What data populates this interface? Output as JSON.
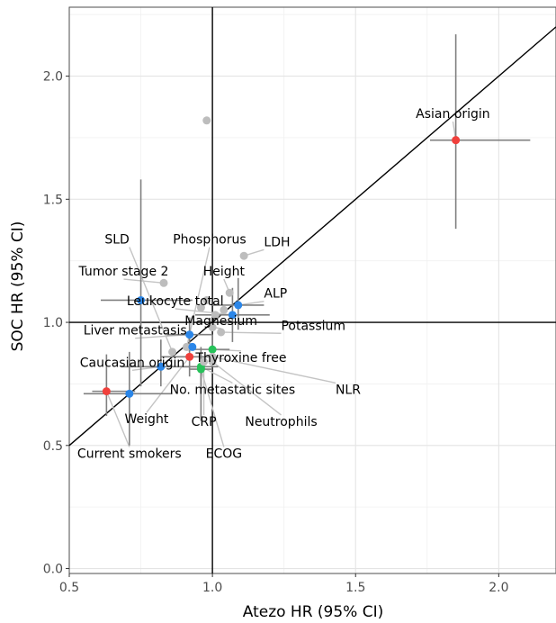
{
  "chart_data": {
    "type": "scatter",
    "title": "",
    "xlabel": "Atezo HR (95% CI)",
    "ylabel": "SOC HR (95% CI)",
    "xlim": [
      0.5,
      2.2
    ],
    "ylim": [
      -0.02,
      2.28
    ],
    "xticks": [
      0.5,
      1.0,
      1.5,
      2.0
    ],
    "yticks": [
      0.0,
      0.5,
      1.0,
      1.5,
      2.0
    ],
    "xtick_labels": [
      "0.5",
      "1.0",
      "1.5",
      "2.0"
    ],
    "ytick_labels": [
      "0.0",
      "0.5",
      "1.0",
      "1.5",
      "2.0"
    ],
    "grid": true,
    "reference_lines": {
      "x": 1.0,
      "y": 1.0,
      "identity": true
    },
    "colors": {
      "red": "#f0403c",
      "blue": "#2b86e8",
      "green": "#27c25a",
      "grey": "#bdbdbd",
      "errorbar": "#808080",
      "leader": "#c4c4c4"
    },
    "points": [
      {
        "label": "Asian origin",
        "x": 1.85,
        "y": 1.74,
        "xmin": 1.76,
        "xmax": 2.11,
        "ymin": 1.38,
        "ymax": 2.17,
        "color": "red",
        "lx": 1.84,
        "ly": 1.83,
        "anchor": "middle"
      },
      {
        "label": "SLD",
        "x": 0.86,
        "y": 0.88,
        "color": "grey",
        "lx": 0.71,
        "ly": 1.32,
        "anchor": "end"
      },
      {
        "label": "Phosphorus",
        "x": 0.91,
        "y": 0.9,
        "color": "grey",
        "lx": 0.99,
        "ly": 1.32,
        "anchor": "middle"
      },
      {
        "label": "LDH",
        "x": 1.11,
        "y": 1.27,
        "color": "grey",
        "lx": 1.18,
        "ly": 1.31,
        "anchor": "start"
      },
      {
        "label": "Tumor stage 2",
        "x": 0.83,
        "y": 1.16,
        "color": "grey",
        "lx": 0.69,
        "ly": 1.19,
        "anchor": "middle"
      },
      {
        "label": "Height",
        "x": 1.06,
        "y": 1.12,
        "color": "grey",
        "lx": 1.04,
        "ly": 1.19,
        "anchor": "middle"
      },
      {
        "label": "ALP",
        "x": 1.09,
        "y": 1.07,
        "xmin": 1.0,
        "xmax": 1.18,
        "ymin": 0.97,
        "ymax": 1.18,
        "color": "blue",
        "lx": 1.18,
        "ly": 1.1,
        "anchor": "start"
      },
      {
        "label": "Leukocyte total",
        "x": 1.07,
        "y": 1.03,
        "xmin": 0.94,
        "xmax": 1.2,
        "ymin": 0.92,
        "ymax": 1.14,
        "color": "blue",
        "lx": 0.87,
        "ly": 1.07,
        "anchor": "middle"
      },
      {
        "label": "Magnesium",
        "x": 1.0,
        "y": 0.98,
        "color": "grey",
        "lx": 1.03,
        "ly": 0.99,
        "anchor": "middle"
      },
      {
        "label": "Potassium",
        "x": 1.03,
        "y": 0.96,
        "color": "grey",
        "lx": 1.24,
        "ly": 0.97,
        "anchor": "start"
      },
      {
        "label": "Liver metastasis",
        "x": 0.92,
        "y": 0.95,
        "xmin": 0.84,
        "xmax": 1.0,
        "ymin": 0.88,
        "ymax": 1.02,
        "color": "blue",
        "lx": 0.73,
        "ly": 0.95,
        "anchor": "middle"
      },
      {
        "label": "Thyroxine free",
        "x": 1.0,
        "y": 0.89,
        "xmin": 0.94,
        "xmax": 1.06,
        "ymin": 0.84,
        "ymax": 0.95,
        "color": "green",
        "lx": 1.1,
        "ly": 0.84,
        "anchor": "middle"
      },
      {
        "label": "Caucasian origin",
        "x": 0.82,
        "y": 0.82,
        "xmin": 0.68,
        "xmax": 0.96,
        "ymin": 0.74,
        "ymax": 0.93,
        "color": "blue",
        "lx": 0.72,
        "ly": 0.82,
        "anchor": "middle"
      },
      {
        "label": "No. metastatic sites",
        "x": 0.96,
        "y": 0.82,
        "xmin": 0.9,
        "xmax": 1.02,
        "ymin": 0.74,
        "ymax": 0.9,
        "color": "green",
        "lx": 1.07,
        "ly": 0.71,
        "anchor": "middle"
      },
      {
        "label": "NLR",
        "x": 1.0,
        "y": 0.86,
        "color": "grey",
        "lx": 1.43,
        "ly": 0.71,
        "anchor": "start"
      },
      {
        "label": "Weight",
        "x": 0.92,
        "y": 0.86,
        "xmin": 0.82,
        "xmax": 1.02,
        "ymin": 0.78,
        "ymax": 0.94,
        "color": "red",
        "lx": 0.77,
        "ly": 0.59,
        "anchor": "middle"
      },
      {
        "label": "CRP",
        "x": 0.97,
        "y": 0.84,
        "color": "grey",
        "lx": 0.97,
        "ly": 0.58,
        "anchor": "middle"
      },
      {
        "label": "Neutrophils",
        "x": 1.0,
        "y": 0.84,
        "color": "grey",
        "lx": 1.24,
        "ly": 0.58,
        "anchor": "middle"
      },
      {
        "label": "Current smokers",
        "x": 0.63,
        "y": 0.72,
        "xmin": 0.58,
        "xmax": 0.73,
        "ymin": 0.62,
        "ymax": 0.87,
        "color": "red",
        "lx": 0.71,
        "ly": 0.45,
        "anchor": "middle"
      },
      {
        "label": "ECOG",
        "x": 0.96,
        "y": 0.81,
        "xmin": 0.92,
        "xmax": 1.0,
        "ymin": 0.6,
        "ymax": 0.86,
        "color": "green",
        "lx": 1.04,
        "ly": 0.45,
        "anchor": "middle"
      },
      {
        "label": "",
        "x": 0.71,
        "y": 0.71,
        "xmin": 0.55,
        "xmax": 0.86,
        "ymin": 0.5,
        "ymax": 0.88,
        "color": "blue"
      },
      {
        "label": "",
        "x": 0.75,
        "y": 1.09,
        "xmin": 0.61,
        "xmax": 0.93,
        "ymin": 0.74,
        "ymax": 1.58,
        "color": "blue"
      },
      {
        "label": "",
        "x": 0.93,
        "y": 0.9,
        "color": "blue"
      },
      {
        "label": "",
        "x": 0.98,
        "y": 1.82,
        "color": "grey"
      },
      {
        "label": "",
        "x": 0.96,
        "y": 1.06,
        "color": "grey"
      },
      {
        "label": "",
        "x": 1.01,
        "y": 1.03,
        "color": "grey"
      },
      {
        "label": "",
        "x": 1.04,
        "y": 1.05,
        "color": "grey"
      },
      {
        "label": "",
        "x": 0.98,
        "y": 1.09,
        "color": "grey"
      }
    ]
  }
}
